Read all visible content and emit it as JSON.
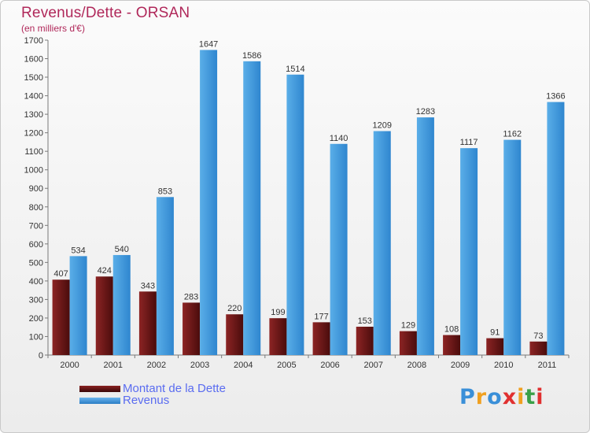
{
  "header": {
    "title": "Revenus/Dette - ORSAN",
    "subtitle": "(en milliers d'€)"
  },
  "colors": {
    "dette": "#6e1414",
    "revenus": "#3c97dc",
    "legend_text": "#5a6cf0",
    "title": "#b0285a"
  },
  "legend": [
    {
      "label": "Montant de la Dette",
      "color": "#6e1414"
    },
    {
      "label": "Revenus",
      "color": "#3c97dc"
    }
  ],
  "logo": {
    "text": "Proxiti"
  },
  "chart_data": {
    "type": "bar",
    "title": "Revenus/Dette - ORSAN",
    "subtitle": "(en milliers d'€)",
    "categories": [
      "2000",
      "2001",
      "2002",
      "2003",
      "2004",
      "2005",
      "2006",
      "2007",
      "2008",
      "2009",
      "2010",
      "2011"
    ],
    "series": [
      {
        "name": "Montant de la Dette",
        "values": [
          407,
          424,
          343,
          283,
          220,
          199,
          177,
          153,
          129,
          108,
          91,
          73
        ]
      },
      {
        "name": "Revenus",
        "values": [
          534,
          540,
          853,
          1647,
          1586,
          1514,
          1140,
          1209,
          1283,
          1117,
          1162,
          1366
        ]
      }
    ],
    "ylim": [
      0,
      1700
    ],
    "yticks": [
      0,
      100,
      200,
      300,
      400,
      500,
      600,
      700,
      800,
      900,
      1000,
      1100,
      1200,
      1300,
      1400,
      1500,
      1600,
      1700
    ],
    "grid": false,
    "legend_position": "bottom-left"
  }
}
